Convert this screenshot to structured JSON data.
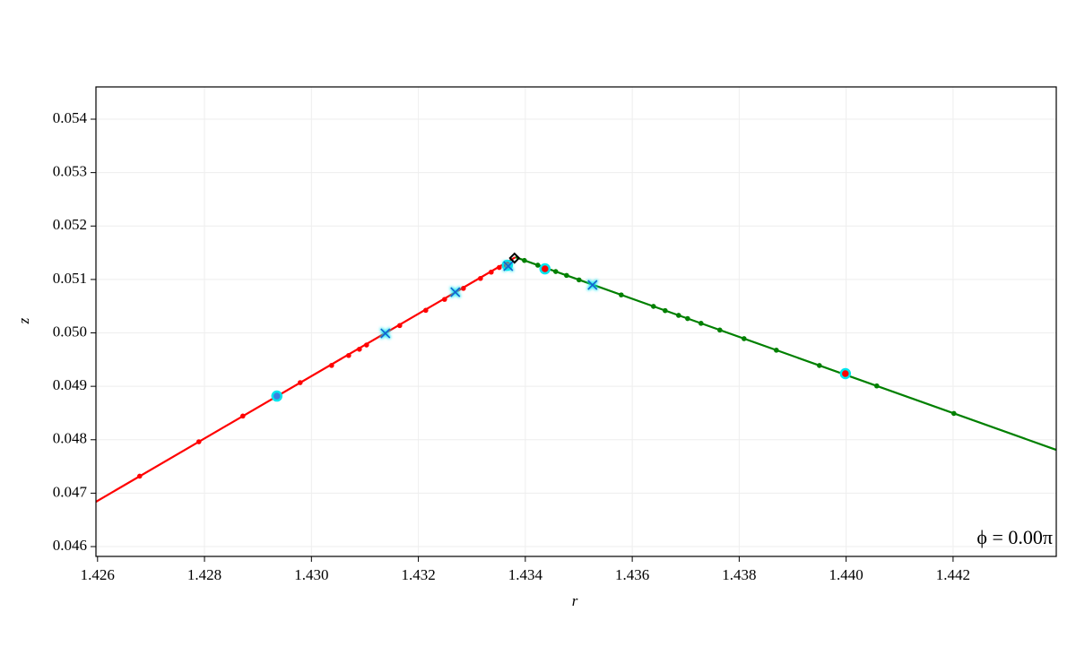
{
  "chart_data": {
    "type": "line",
    "x_label": "r",
    "y_label": "z",
    "annotation": "ϕ = 0.00π",
    "xlim": [
      1.42597,
      1.44393
    ],
    "ylim": [
      0.045816,
      0.054604
    ],
    "xticks": [
      1.426,
      1.428,
      {
        "value": 1.43,
        "label": "1.430"
      },
      1.432,
      1.434,
      1.436,
      1.438,
      {
        "value": 1.44,
        "label": "1.440"
      },
      1.442
    ],
    "yticks": [
      0.046,
      0.047,
      0.048,
      0.049,
      {
        "value": 0.05,
        "label": "0.050"
      },
      0.051,
      0.052,
      0.053,
      0.054
    ],
    "grid": true,
    "series": [
      {
        "style": "line",
        "color": "#ff0000",
        "x": [
          1.42597,
          1.433816
        ],
        "y": [
          0.046839,
          0.051417
        ]
      },
      {
        "style": "line",
        "color": "#008000",
        "x": [
          1.433816,
          1.443928
        ],
        "y": [
          0.051417,
          0.047811
        ]
      },
      {
        "style": "dot",
        "color": "#ff0000",
        "x": [
          1.426788,
          1.427895,
          1.428717,
          1.42979,
          1.430377,
          1.430696,
          1.430897,
          1.431031,
          1.431651,
          1.432138,
          1.43249,
          1.432842,
          1.433161,
          1.433362,
          1.433513,
          1.433647
        ],
        "y": [
          0.047318,
          0.047962,
          0.048443,
          0.049069,
          0.049391,
          0.049577,
          0.049694,
          0.049773,
          0.050137,
          0.050422,
          0.050627,
          0.050833,
          0.051019,
          0.051137,
          0.051224,
          0.051303
        ]
      },
      {
        "style": "dot",
        "color": "#008000",
        "x": [
          1.433983,
          1.434234,
          1.434569,
          1.434771,
          1.435005,
          1.435794,
          1.436397,
          1.436615,
          1.436867,
          1.437035,
          1.437286,
          1.437638,
          1.438091,
          1.438695,
          1.4395,
          1.440573,
          1.442015
        ],
        "y": [
          0.051356,
          0.051267,
          0.051148,
          0.051076,
          0.050992,
          0.050711,
          0.050496,
          0.050417,
          0.050328,
          0.050268,
          0.050179,
          0.050053,
          0.049892,
          0.049676,
          0.049389,
          0.049007,
          0.048492
        ]
      },
      {
        "style": "ring",
        "color": "#3a7fe0",
        "edgecolor": "#00e5ee",
        "x": [
          1.429354
        ],
        "y": [
          0.048817
        ]
      },
      {
        "style": "ring",
        "color": "#ff0000",
        "edgecolor": "#00e5ee",
        "x": [
          1.433664,
          1.434368,
          1.439986
        ],
        "y": [
          0.051266,
          0.051199,
          0.049237
        ]
      },
      {
        "style": "cross",
        "color": "#1560d0",
        "edgecolor": "#00e5ee",
        "x": [
          1.431383,
          1.432691,
          1.435257,
          1.433681
        ],
        "y": [
          0.049991,
          0.050763,
          0.050897,
          0.051249
        ]
      },
      {
        "style": "diamond",
        "color": "#000000",
        "x": [
          1.433798
        ],
        "y": [
          0.0514
        ]
      }
    ]
  }
}
